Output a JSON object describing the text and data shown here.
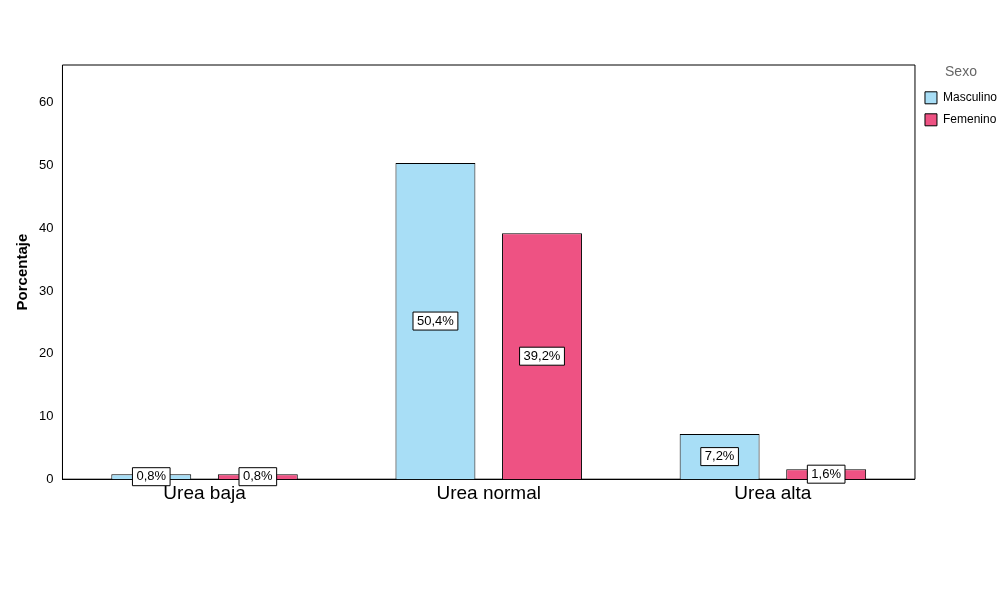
{
  "chart_data": {
    "type": "bar",
    "ylabel": "Porcentaje",
    "legend_title": "Sexo",
    "categories": [
      "Urea baja",
      "Urea normal",
      "Urea alta"
    ],
    "series": [
      {
        "name": "Masculino",
        "color": "#a8def6",
        "values": [
          0.8,
          50.4,
          7.2
        ],
        "value_labels": [
          "0,8%",
          "50,4%",
          "7,2%"
        ]
      },
      {
        "name": "Femenino",
        "color": "#ee5283",
        "values": [
          0.8,
          39.2,
          1.6
        ],
        "value_labels": [
          "0,8%",
          "39,2%",
          "1,6%"
        ]
      }
    ],
    "ylim": [
      0,
      66
    ],
    "yticks": [
      0,
      10,
      20,
      30,
      40,
      50,
      60
    ],
    "grid": false,
    "legend": "top right"
  }
}
